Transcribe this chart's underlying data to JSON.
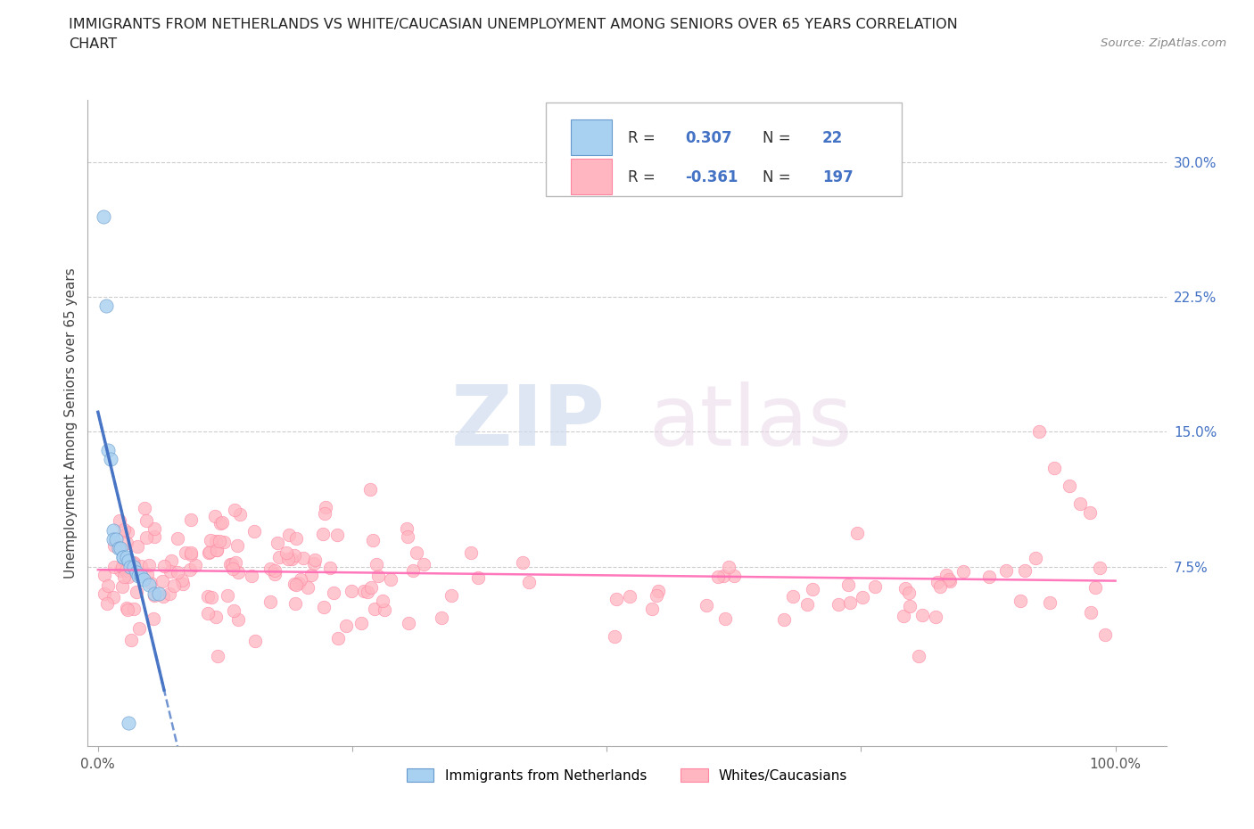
{
  "title_line1": "IMMIGRANTS FROM NETHERLANDS VS WHITE/CAUCASIAN UNEMPLOYMENT AMONG SENIORS OVER 65 YEARS CORRELATION",
  "title_line2": "CHART",
  "source": "Source: ZipAtlas.com",
  "ylabel": "Unemployment Among Seniors over 65 years",
  "yticks": [
    "7.5%",
    "15.0%",
    "22.5%",
    "30.0%"
  ],
  "ytick_vals": [
    0.075,
    0.15,
    0.225,
    0.3
  ],
  "xlim": [
    -0.01,
    1.05
  ],
  "ylim": [
    -0.025,
    0.335
  ],
  "r_blue": 0.307,
  "n_blue": 22,
  "r_pink": -0.361,
  "n_pink": 197,
  "blue_fill_color": "#A8D0F0",
  "pink_fill_color": "#FFB6C1",
  "blue_edge_color": "#6699CC",
  "pink_edge_color": "#FF85A1",
  "blue_line_color": "#4472C4",
  "pink_line_color": "#FF69B4",
  "legend_label_blue": "Immigrants from Netherlands",
  "legend_label_pink": "Whites/Caucasians",
  "watermark_zip": "ZIP",
  "watermark_atlas": "atlas",
  "grid_color": "#CCCCCC",
  "spine_color": "#AAAAAA"
}
